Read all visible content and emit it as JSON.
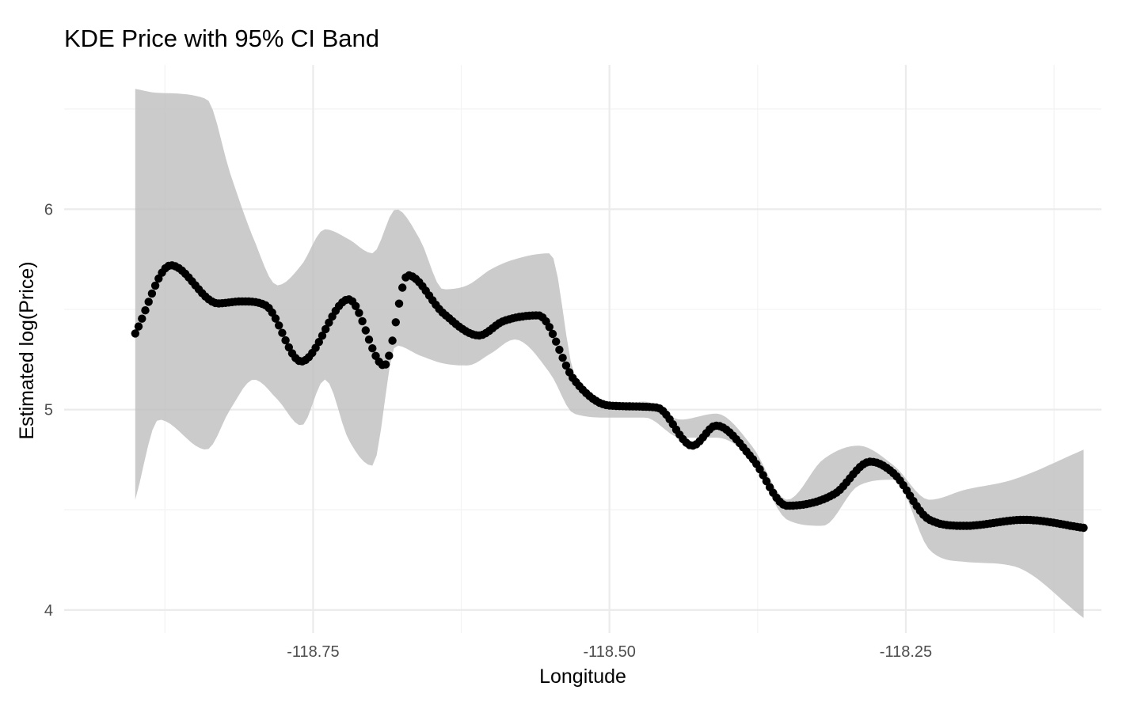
{
  "chart_data": {
    "type": "scatter",
    "title": "KDE Price with 95% CI Band",
    "xlabel": "Longitude",
    "ylabel": "Estimated log(Price)",
    "xlim": [
      -118.96,
      -118.085
    ],
    "ylim": [
      3.885,
      6.72
    ],
    "x_ticks": [
      -118.75,
      -118.5,
      -118.25
    ],
    "x_tick_labels": [
      "-118.75",
      "-118.50",
      "-118.25"
    ],
    "y_ticks": [
      4,
      5,
      6
    ],
    "y_tick_labels": [
      "4",
      "5",
      "6"
    ],
    "grid": true,
    "legend": "none",
    "colors": {
      "points": "#000000",
      "band": "#bdbdbd"
    },
    "fit_knots": {
      "x": [
        -118.9,
        -118.87,
        -118.83,
        -118.81,
        -118.79,
        -118.76,
        -118.72,
        -118.69,
        -118.67,
        -118.64,
        -118.61,
        -118.59,
        -118.56,
        -118.53,
        -118.5,
        -118.46,
        -118.43,
        -118.41,
        -118.38,
        -118.35,
        -118.31,
        -118.28,
        -118.26,
        -118.23,
        -118.2,
        -118.15,
        -118.1
      ],
      "y": [
        5.38,
        5.72,
        5.53,
        5.54,
        5.52,
        5.24,
        5.55,
        5.22,
        5.67,
        5.48,
        5.37,
        5.44,
        5.47,
        5.15,
        5.02,
        5.01,
        4.82,
        4.92,
        4.76,
        4.52,
        4.58,
        4.74,
        4.68,
        4.45,
        4.42,
        4.45,
        4.41
      ]
    },
    "ci_band": {
      "x": [
        -118.9,
        -118.88,
        -118.84,
        -118.82,
        -118.8,
        -118.78,
        -118.76,
        -118.74,
        -118.72,
        -118.7,
        -118.68,
        -118.66,
        -118.64,
        -118.62,
        -118.6,
        -118.58,
        -118.55,
        -118.53,
        -118.5,
        -118.47,
        -118.44,
        -118.41,
        -118.38,
        -118.35,
        -118.32,
        -118.29,
        -118.26,
        -118.23,
        -118.2,
        -118.16,
        -118.1
      ],
      "upper": [
        6.6,
        6.58,
        6.55,
        6.18,
        5.85,
        5.62,
        5.72,
        5.9,
        5.85,
        5.78,
        6.0,
        5.85,
        5.6,
        5.62,
        5.7,
        5.75,
        5.78,
        5.18,
        5.02,
        5.04,
        4.95,
        4.98,
        4.82,
        4.55,
        4.75,
        4.82,
        4.72,
        4.55,
        4.6,
        4.65,
        4.8
      ],
      "lower": [
        4.55,
        4.95,
        4.8,
        5.0,
        5.15,
        5.05,
        4.92,
        5.15,
        4.85,
        4.72,
        5.32,
        5.27,
        5.23,
        5.22,
        5.28,
        5.35,
        5.18,
        4.98,
        4.96,
        4.96,
        4.86,
        4.86,
        4.75,
        4.45,
        4.42,
        4.62,
        4.65,
        4.3,
        4.24,
        4.22,
        3.96
      ]
    },
    "n_points": 285
  }
}
